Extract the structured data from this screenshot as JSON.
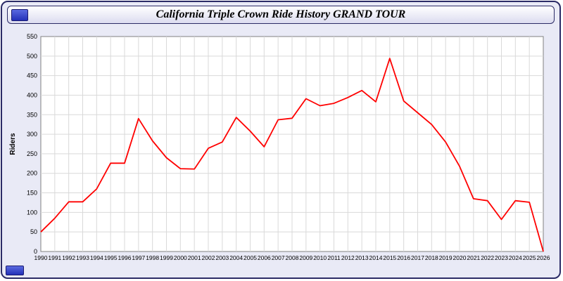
{
  "header": {
    "title": "California Triple Crown Ride History GRAND TOUR"
  },
  "colors": {
    "line": "#ff0000",
    "plot_bg": "#ffffff",
    "grid": "#d9d9d9",
    "axis": "#808080",
    "page_bg": "#e9eaf6",
    "border": "#2b2b66"
  },
  "chart_data": {
    "type": "line",
    "title": "California Triple Crown Ride History GRAND TOUR",
    "xlabel": "",
    "ylabel": "Riders",
    "ylim": [
      0,
      550
    ],
    "ytick_step": 50,
    "grid": true,
    "legend": "none",
    "categories": [
      1990,
      1991,
      1992,
      1993,
      1994,
      1995,
      1996,
      1997,
      1998,
      1999,
      2000,
      2001,
      2002,
      2003,
      2004,
      2005,
      2006,
      2007,
      2008,
      2009,
      2010,
      2011,
      2012,
      2013,
      2014,
      2015,
      2016,
      2017,
      2018,
      2019,
      2020,
      2021,
      2022,
      2023,
      2024,
      2025,
      2026
    ],
    "series": [
      {
        "name": "Riders",
        "values": [
          50,
          85,
          127,
          127,
          160,
          226,
          226,
          340,
          283,
          240,
          212,
          211,
          264,
          280,
          343,
          308,
          268,
          337,
          341,
          391,
          373,
          379,
          394,
          412,
          383,
          494,
          385,
          355,
          325,
          280,
          218,
          135,
          130,
          82,
          130,
          126,
          0
        ]
      }
    ]
  }
}
